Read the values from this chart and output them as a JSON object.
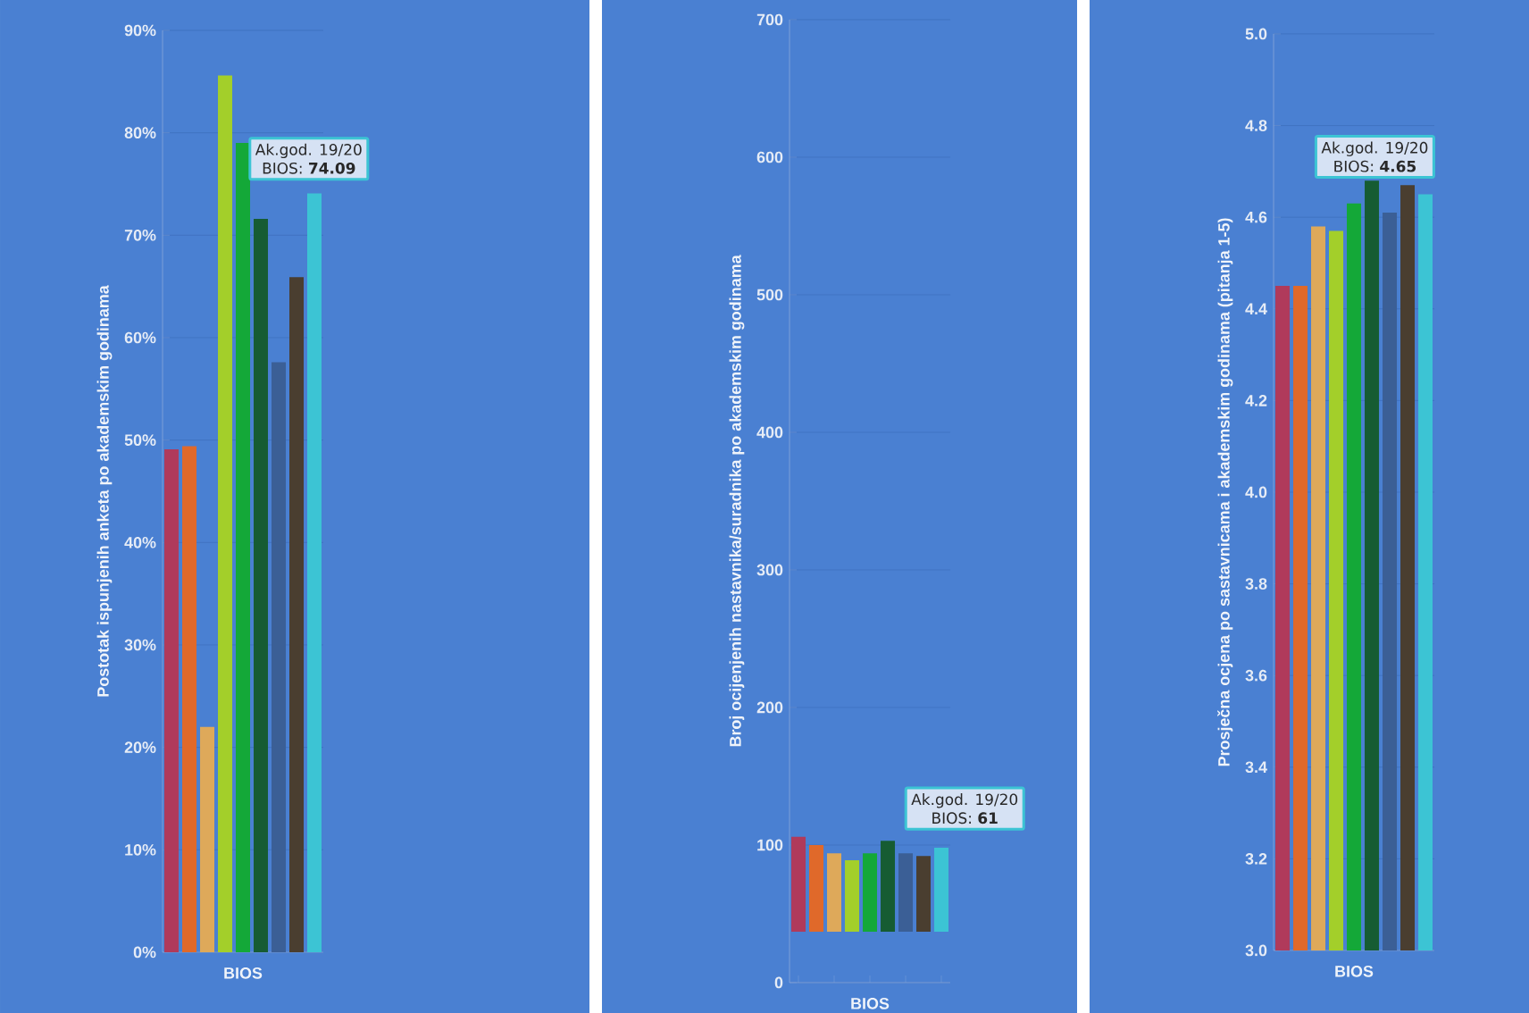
{
  "chart_data": [
    {
      "type": "bar",
      "ylabel": "Postotak ispunjenih anketa po akademskim godinama",
      "xlabel": "BIOS",
      "categories": [
        null,
        null,
        null,
        null,
        null,
        null,
        null,
        null,
        null
      ],
      "values": [
        49.1,
        49.4,
        22.0,
        85.6,
        79,
        71.6,
        57.6,
        65.9,
        74.09
      ],
      "colors": [
        "#b03a5b",
        "#e0692a",
        "#dea95a",
        "#a3cf2a",
        "#14a838",
        "#165c33",
        "#3b5f96",
        "#4a3e30",
        "#3cc4d4"
      ],
      "ylim": [
        0,
        90
      ],
      "yticks": [
        {
          "value": 0,
          "label": "0%"
        },
        {
          "value": 10,
          "label": "10%"
        },
        {
          "value": 20,
          "label": "20%"
        },
        {
          "value": 30,
          "label": "30%"
        },
        {
          "value": 40,
          "label": "40%"
        },
        {
          "value": 50,
          "label": "50%"
        },
        {
          "value": 60,
          "label": "60%"
        },
        {
          "value": 70,
          "label": "70%"
        },
        {
          "value": 80,
          "label": "80%"
        },
        {
          "value": 90,
          "label": "90%"
        }
      ],
      "grid": "y",
      "annotations": [
        "Ak.god. 19/20",
        "BIOS: **74.09**"
      ]
    },
    {
      "type": "bar",
      "ylabel": "Broj ocijenjenih nastavnika/suradnika po akademskim godinama",
      "xlabel": "BIOS",
      "categories": [
        null,
        null,
        null,
        null,
        null,
        null,
        null,
        null,
        null
      ],
      "values": [
        69,
        63,
        57,
        52,
        57,
        66,
        57,
        55,
        61
      ],
      "base": [
        37,
        37,
        37,
        37,
        37,
        37,
        37,
        37,
        37
      ],
      "colors": [
        "#b03a5b",
        "#e0692a",
        "#dea95a",
        "#a3cf2a",
        "#14a838",
        "#165c33",
        "#3b5f96",
        "#4a3e30",
        "#3cc4d4"
      ],
      "ylim": [
        0,
        700
      ],
      "yticks": [
        0,
        100,
        200,
        300,
        400,
        500,
        600,
        700
      ],
      "grid": "y",
      "annotations": [
        "Ak.god. 19/20",
        "BIOS: **61**"
      ]
    },
    {
      "type": "bar",
      "ylabel": "Prosječna ocjena po sastavnicama i akademskim godinama (pitanja 1-5)",
      "xlabel": "BIOS",
      "categories": [
        null,
        null,
        null,
        null,
        null,
        null,
        null,
        null,
        null
      ],
      "values": [
        4.45,
        4.45,
        4.58,
        4.57,
        4.63,
        4.68,
        4.61,
        4.67,
        4.65
      ],
      "colors": [
        "#b03a5b",
        "#e0692a",
        "#dea95a",
        "#a3cf2a",
        "#14a838",
        "#165c33",
        "#3b5f96",
        "#4a3e30",
        "#3cc4d4"
      ],
      "ylim": [
        3.0,
        5.0
      ],
      "yticks": [
        {
          "value": 3.0,
          "label": "3.0"
        },
        {
          "value": 3.2,
          "label": "3.2"
        },
        {
          "value": 3.4,
          "label": "3.4"
        },
        {
          "value": 3.6,
          "label": "3.6"
        },
        {
          "value": 3.8,
          "label": "3.8"
        },
        {
          "value": 4.0,
          "label": "4.0"
        },
        {
          "value": 4.2,
          "label": "4.2"
        },
        {
          "value": 4.4,
          "label": "4.4"
        },
        {
          "value": 4.6,
          "label": "4.6"
        },
        {
          "value": 4.8,
          "label": "4.8"
        },
        {
          "value": 5.0,
          "label": "5.0"
        }
      ],
      "grid": "y",
      "annotations": [
        "Ak.god. 19/20",
        "BIOS: **4.65**"
      ]
    }
  ]
}
